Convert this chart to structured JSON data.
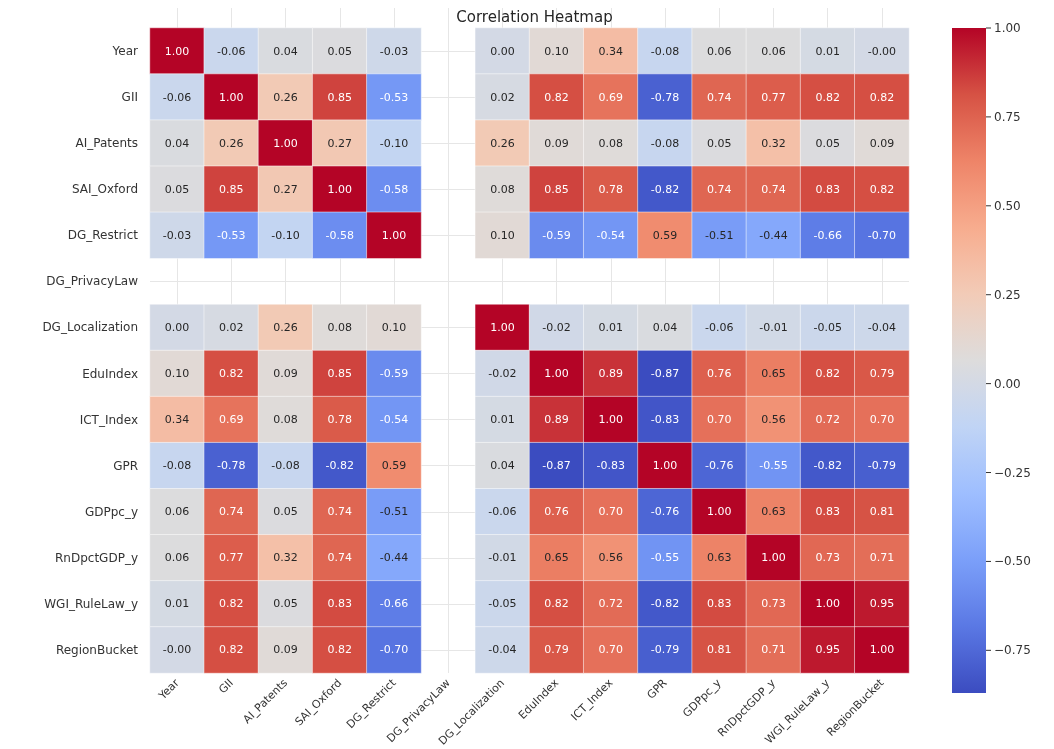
{
  "chart_data": {
    "type": "heatmap",
    "title": "Correlation Heatmap",
    "categories": [
      "Year",
      "GII",
      "AI_Patents",
      "SAI_Oxford",
      "DG_Restrict",
      "DG_PrivacyLaw",
      "DG_Localization",
      "EduIndex",
      "ICT_Index",
      "GPR",
      "GDPpc_y",
      "RnDpctGDP_y",
      "WGI_RuleLaw_y",
      "RegionBucket"
    ],
    "y_categories": [
      "Year",
      "GII",
      "AI_Patents",
      "SAI_Oxford",
      "DG_Restrict",
      "DG_PrivacyLaw",
      "DG_Localization",
      "EduIndex",
      "ICT_Index",
      "GPR",
      "GDPpc_y",
      "RnDpctGDP_y",
      "WGI_RuleLaw_y",
      "RegionBucket"
    ],
    "cells": [
      [
        1.0,
        -0.06,
        0.04,
        0.05,
        -0.03,
        null,
        0.0,
        0.1,
        0.34,
        -0.08,
        0.06,
        0.06,
        0.01,
        -0.0
      ],
      [
        -0.06,
        1.0,
        0.26,
        0.85,
        -0.53,
        null,
        0.02,
        0.82,
        0.69,
        -0.78,
        0.74,
        0.77,
        0.82,
        0.82
      ],
      [
        0.04,
        0.26,
        1.0,
        0.27,
        -0.1,
        null,
        0.26,
        0.09,
        0.08,
        -0.08,
        0.05,
        0.32,
        0.05,
        0.09
      ],
      [
        0.05,
        0.85,
        0.27,
        1.0,
        -0.58,
        null,
        0.08,
        0.85,
        0.78,
        -0.82,
        0.74,
        0.74,
        0.83,
        0.82
      ],
      [
        -0.03,
        -0.53,
        -0.1,
        -0.58,
        1.0,
        null,
        0.1,
        -0.59,
        -0.54,
        0.59,
        -0.51,
        -0.44,
        -0.66,
        -0.7
      ],
      [
        null,
        null,
        null,
        null,
        null,
        null,
        null,
        null,
        null,
        null,
        null,
        null,
        null,
        null
      ],
      [
        0.0,
        0.02,
        0.26,
        0.08,
        0.1,
        null,
        1.0,
        -0.02,
        0.01,
        0.04,
        -0.06,
        -0.01,
        -0.05,
        -0.04
      ],
      [
        0.1,
        0.82,
        0.09,
        0.85,
        -0.59,
        null,
        -0.02,
        1.0,
        0.89,
        -0.87,
        0.76,
        0.65,
        0.82,
        0.79
      ],
      [
        0.34,
        0.69,
        0.08,
        0.78,
        -0.54,
        null,
        0.01,
        0.89,
        1.0,
        -0.83,
        0.7,
        0.56,
        0.72,
        0.7
      ],
      [
        -0.08,
        -0.78,
        -0.08,
        -0.82,
        0.59,
        null,
        0.04,
        -0.87,
        -0.83,
        1.0,
        -0.76,
        -0.55,
        -0.82,
        -0.79
      ],
      [
        0.06,
        0.74,
        0.05,
        0.74,
        -0.51,
        null,
        -0.06,
        0.76,
        0.7,
        -0.76,
        1.0,
        0.63,
        0.83,
        0.81
      ],
      [
        0.06,
        0.77,
        0.32,
        0.74,
        -0.44,
        null,
        -0.01,
        0.65,
        0.56,
        -0.55,
        0.63,
        1.0,
        0.73,
        0.71
      ],
      [
        0.01,
        0.82,
        0.05,
        0.83,
        -0.66,
        null,
        -0.05,
        0.82,
        0.72,
        -0.82,
        0.83,
        0.73,
        1.0,
        0.95
      ],
      [
        -0.0,
        0.82,
        0.09,
        0.82,
        -0.7,
        null,
        -0.04,
        0.79,
        0.7,
        -0.79,
        0.81,
        0.71,
        0.95,
        1.0
      ]
    ],
    "cell_labels": [
      [
        "1.00",
        "-0.06",
        "0.04",
        "0.05",
        "-0.03",
        null,
        "0.00",
        "0.10",
        "0.34",
        "-0.08",
        "0.06",
        "0.06",
        "0.01",
        "-0.00"
      ],
      [
        "-0.06",
        "1.00",
        "0.26",
        "0.85",
        "-0.53",
        null,
        "0.02",
        "0.82",
        "0.69",
        "-0.78",
        "0.74",
        "0.77",
        "0.82",
        "0.82"
      ],
      [
        "0.04",
        "0.26",
        "1.00",
        "0.27",
        "-0.10",
        null,
        "0.26",
        "0.09",
        "0.08",
        "-0.08",
        "0.05",
        "0.32",
        "0.05",
        "0.09"
      ],
      [
        "0.05",
        "0.85",
        "0.27",
        "1.00",
        "-0.58",
        null,
        "0.08",
        "0.85",
        "0.78",
        "-0.82",
        "0.74",
        "0.74",
        "0.83",
        "0.82"
      ],
      [
        "-0.03",
        "-0.53",
        "-0.10",
        "-0.58",
        "1.00",
        null,
        "0.10",
        "-0.59",
        "-0.54",
        "0.59",
        "-0.51",
        "-0.44",
        "-0.66",
        "-0.70"
      ],
      [
        null,
        null,
        null,
        null,
        null,
        null,
        null,
        null,
        null,
        null,
        null,
        null,
        null,
        null
      ],
      [
        "0.00",
        "0.02",
        "0.26",
        "0.08",
        "0.10",
        null,
        "1.00",
        "-0.02",
        "0.01",
        "0.04",
        "-0.06",
        "-0.01",
        "-0.05",
        "-0.04"
      ],
      [
        "0.10",
        "0.82",
        "0.09",
        "0.85",
        "-0.59",
        null,
        "-0.02",
        "1.00",
        "0.89",
        "-0.87",
        "0.76",
        "0.65",
        "0.82",
        "0.79"
      ],
      [
        "0.34",
        "0.69",
        "0.08",
        "0.78",
        "-0.54",
        null,
        "0.01",
        "0.89",
        "1.00",
        "-0.83",
        "0.70",
        "0.56",
        "0.72",
        "0.70"
      ],
      [
        "-0.08",
        "-0.78",
        "-0.08",
        "-0.82",
        "0.59",
        null,
        "0.04",
        "-0.87",
        "-0.83",
        "1.00",
        "-0.76",
        "-0.55",
        "-0.82",
        "-0.79"
      ],
      [
        "0.06",
        "0.74",
        "0.05",
        "0.74",
        "-0.51",
        null,
        "-0.06",
        "0.76",
        "0.70",
        "-0.76",
        "1.00",
        "0.63",
        "0.83",
        "0.81"
      ],
      [
        "0.06",
        "0.77",
        "0.32",
        "0.74",
        "-0.44",
        null,
        "-0.01",
        "0.65",
        "0.56",
        "-0.55",
        "0.63",
        "1.00",
        "0.73",
        "0.71"
      ],
      [
        "0.01",
        "0.82",
        "0.05",
        "0.83",
        "-0.66",
        null,
        "-0.05",
        "0.82",
        "0.72",
        "-0.82",
        "0.83",
        "0.73",
        "1.00",
        "0.95"
      ],
      [
        "-0.00",
        "0.82",
        "0.09",
        "0.82",
        "-0.70",
        null,
        "-0.04",
        "0.79",
        "0.70",
        "-0.79",
        "0.81",
        "0.71",
        "0.95",
        "1.00"
      ]
    ],
    "clim": [
      -0.87,
      1.0
    ],
    "cticks": [
      {
        "value": -0.75,
        "label": "−0.75"
      },
      {
        "value": -0.5,
        "label": "−0.50"
      },
      {
        "value": -0.25,
        "label": "−0.25"
      },
      {
        "value": 0,
        "label": "0.00"
      },
      {
        "value": 0.25,
        "label": "0.25"
      },
      {
        "value": 0.5,
        "label": "0.50"
      },
      {
        "value": 0.75,
        "label": "0.75"
      },
      {
        "value": 1,
        "label": "1.00"
      }
    ],
    "grid": true
  }
}
